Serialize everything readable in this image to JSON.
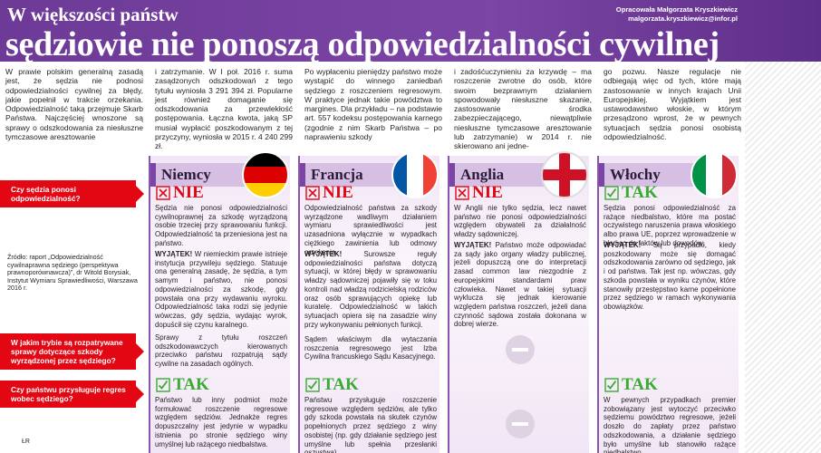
{
  "header": {
    "kicker": "W większości państw",
    "title": "sędziowie nie ponoszą odpowiedzialności cywilnej",
    "author": "Opracowała Małgorzata Kryszkiewicz",
    "email": "malgorzata.kryszkiewicz@infor.pl"
  },
  "intro": [
    "W prawie polskim generalną zasadą jest, że sędzia nie podnosi odpowiedzialności cywilnej za błędy, jakie popełnił w trakcie orzekania. Odpowiedzialność taką przejmuje Skarb Państwa. Najczęściej wnoszone są sprawy o odszkodowania za niesłuszne tymczasowe aresztowanie",
    "i zatrzymanie. W I poł. 2016 r. suma zasądzonych odszkodowań z tego tytułu wyniosła 3 291 394 zł. Popularne jest również domaganie się odszkodowania za przewlekłość postępowania. Łączna kwota, jaką SP musiał wypłacić poszkodowanym z tej przyczyny, wyniosła w 2015 r. 4 240 299 zł.",
    "Po wypłaceniu pieniędzy państwo może wystąpić do winnego zaniedbań sędziego z roszczeniem regresowym. W praktyce jednak takie powództwa to margines. Dla przykładu – na podstawie art. 557 kodeksu postępowania karnego (zgodnie z nim Skarb Państwa – po naprawieniu szkody",
    "i zadośćuczynieniu za krzywdę – ma roszczenie zwrotne do osób, które swoim bezprawnym działaniem spowodowały niesłuszne skazanie, zastosowanie środka zabezpieczającego, niewątpliwie niesłuszne tymczasowe aresztowanie lub zatrzymanie) w 2014 r. nie skierowano ani jedne-",
    "go pozwu. Nasze regulacje nie odbiegają więc od tych, które mają zastosowanie w innych krajach Unii Europejskiej. Wyjątkiem jest ustawodawstwo włoskie, w którym przesądzono wprost, że w pewnych sytuacjach sędzia ponosi osobistą odpowiedzialność."
  ],
  "questions": [
    "Czy sędzia ponosi odpowiedzialność?",
    "W jakim trybie są rozpatrywane sprawy dotyczące szkody wyrządzonej przez sędziego?",
    "Czy państwu przysługuje regres wobec sędziego?"
  ],
  "source": "Źródło: raport „Odpowiedzialność cywilnaprawna sędziego (perspektywa prawnoporównawcza)”, dr Witold Borysiak, Instytut Wymiaru Sprawiedliwości, Warszawa 2016 r.",
  "credit": "ŁR",
  "countries": [
    {
      "name": "Niemcy",
      "q1": {
        "answer": "NIE",
        "color": "#e30613",
        "text": "Sędzia nie ponosi odpowiedzialności cywilnoprawnej za szkodę wyrządzoną osobie trzeciej przy sprawowaniu funkcji. Odpowiedzialność ta przeniesiona jest na państwo."
      },
      "exception": {
        "label": "WYJĄTEK!",
        "text": "W niemieckim prawie istnieje instytucja przywileju sędziego. Statuuje ona generalną zasadę, że sędzia, a tym samym i państwo, nie ponosi odpowiedzialności za szkodę, gdy powstała ona przy wydawaniu wyroku. Odpowiedzialność taka rodzi się jedynie wówczas, gdy sędzia, wydając wyrok, dopuścił się czynu karalnego."
      },
      "q2": "Sprawy z tytułu roszczeń odszkodowawczych kierowanych przeciwko państwu rozpatrują sądy cywilne na zasadach ogólnych.",
      "q3": {
        "answer": "TAK",
        "color": "#3aaa35",
        "text": "Państwo lub inny podmiot może formułować roszczenie regresowe względem sędziów. Jednakże regres dopuszczalny jest jedynie w wypadku istnienia po stronie sędziego winy umyślnej lub rażącego niedbalstwa."
      }
    },
    {
      "name": "Francja",
      "q1": {
        "answer": "NIE",
        "color": "#e30613",
        "text": "Odpowiedzialność państwa za szkody wyrządzone wadliwym działaniem wymiaru sprawiedliwości jest uzasadniona wyłącznie w wypadkach ciężkiego zawinienia lub odmowy orzekania."
      },
      "exception": {
        "label": "WYJĄTEK!",
        "text": "Surowsze reguły odpowiedzialności państwa dotyczą sytuacji, w której błędy w sprawowaniu władzy sądowniczej pojawiły się w toku kontroli nad władzą rodzicielską rodziców oraz osób sprawujących opiekę lub kuratelę. Odpowiedzialność w takich sytuacjach opiera się na zasadzie winy przy wykonywaniu pełnionych funkcji."
      },
      "q2": "Sądem właściwym dla wytaczania roszczenia regresowego jest Izba Cywilna francuskiego Sądu Kasacyjnego.",
      "q3": {
        "answer": "TAK",
        "color": "#3aaa35",
        "text": "Państwu przysługuje roszczenie regresowe względem sędziów, ale tylko gdy szkoda powstała na skutek czynów popełnionych przez sędziego z winy osobistej (np. gdy działanie sędziego jest umyślne lub spełnia przesłanki oszustwa)."
      }
    },
    {
      "name": "Anglia",
      "q1": {
        "answer": "NIE",
        "color": "#e30613",
        "text": "W Anglii nie tylko sędzia, lecz nawet państwo nie ponosi odpowiedzialności względem obywateli za działalność władzy sądowniczej."
      },
      "exception": {
        "label": "WYJĄTEK!",
        "text": "Państwo może odpowiadać za sądy jako organy władzy publicznej, jeżeli dopuszczą one do interpretacji zasad common law niezgodnie z europejskimi standardami praw człowieka. Nawet w takiej sytuacji wyklucza się jednak kierowanie względem państwa roszczeń, jeżeli dana czynność sądowa została dokonana w dobrej wierze."
      }
    },
    {
      "name": "Włochy",
      "q1": {
        "answer": "TAK",
        "color": "#3aaa35",
        "text": "Sędzia ponosi odpowiedzialność za rażące niedbalstwo, które ma postać oczywistego naruszenia prawa włoskiego albo prawa UE, poprzez wprowadzenie w błąd co do faktów lub dowodów."
      },
      "exception": {
        "label": "WYJĄTEK!",
        "text": "Są przypadki, kiedy poszkodowany może się domagać odszkodowania zarówno od sędziego, jak i od państwa. Tak jest np. wówczas, gdy szkoda powstała w wyniku czynów, które stanowiły przestępstwo karne popełnione przez sędziego w ramach wykonywania obowiązków."
      },
      "q3": {
        "answer": "TAK",
        "color": "#3aaa35",
        "text": "W pewnych przypadkach premier zobowiązany jest wytoczyć przeciwko sędziemu powództwo regresowe, jeżeli doszło do zapłaty przez państwo odszkodowania, a działanie sędziego było umyślne lub stanowiło rażące niedbalstwo."
      }
    }
  ]
}
